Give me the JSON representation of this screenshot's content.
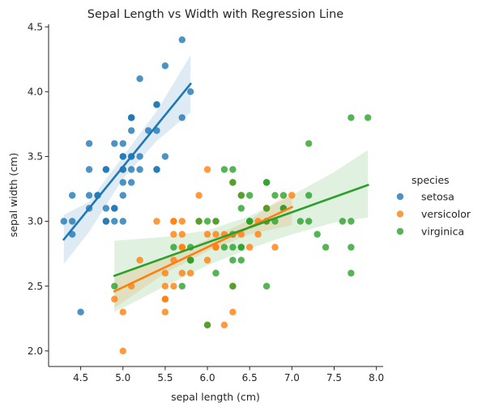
{
  "chart_data": {
    "type": "scatter",
    "title": "Sepal Length vs Width with Regression Line",
    "xlabel": "sepal length (cm)",
    "ylabel": "sepal width (cm)",
    "xlim": [
      4.12,
      8.08
    ],
    "ylim": [
      1.88,
      4.52
    ],
    "xticks": [
      4.5,
      5.0,
      5.5,
      6.0,
      6.5,
      7.0,
      7.5,
      8.0
    ],
    "xtick_labels": [
      "4.5",
      "5.0",
      "5.5",
      "6.0",
      "6.5",
      "7.0",
      "7.5",
      "8.0"
    ],
    "yticks": [
      2.0,
      2.5,
      3.0,
      3.5,
      4.0,
      4.5
    ],
    "ytick_labels": [
      "2.0",
      "2.5",
      "3.0",
      "3.5",
      "4.0",
      "4.5"
    ],
    "grid": false,
    "legend": {
      "title": "species",
      "placement": "right"
    },
    "series": [
      {
        "name": "setosa",
        "color": "#1f77b4",
        "regression": {
          "x": [
            4.3,
            5.8
          ],
          "y": [
            2.86,
            4.06
          ]
        },
        "ci_band": {
          "x": [
            4.3,
            4.6,
            5.0,
            5.4,
            5.8
          ],
          "upper": [
            3.05,
            3.15,
            3.5,
            3.85,
            4.28
          ],
          "lower": [
            2.67,
            2.92,
            3.33,
            3.62,
            3.84
          ]
        },
        "points": [
          [
            5.1,
            3.5
          ],
          [
            4.9,
            3.0
          ],
          [
            4.7,
            3.2
          ],
          [
            4.6,
            3.1
          ],
          [
            5.0,
            3.6
          ],
          [
            5.4,
            3.9
          ],
          [
            4.6,
            3.4
          ],
          [
            5.0,
            3.4
          ],
          [
            4.4,
            2.9
          ],
          [
            4.9,
            3.1
          ],
          [
            5.4,
            3.7
          ],
          [
            4.8,
            3.4
          ],
          [
            4.8,
            3.0
          ],
          [
            4.3,
            3.0
          ],
          [
            5.8,
            4.0
          ],
          [
            5.7,
            4.4
          ],
          [
            5.4,
            3.9
          ],
          [
            5.1,
            3.5
          ],
          [
            5.7,
            3.8
          ],
          [
            5.1,
            3.8
          ],
          [
            5.4,
            3.4
          ],
          [
            5.1,
            3.7
          ],
          [
            4.6,
            3.6
          ],
          [
            5.1,
            3.3
          ],
          [
            4.8,
            3.4
          ],
          [
            5.0,
            3.0
          ],
          [
            5.0,
            3.4
          ],
          [
            5.2,
            3.5
          ],
          [
            5.2,
            3.4
          ],
          [
            4.7,
            3.2
          ],
          [
            4.8,
            3.1
          ],
          [
            5.4,
            3.4
          ],
          [
            5.2,
            4.1
          ],
          [
            5.5,
            4.2
          ],
          [
            4.9,
            3.1
          ],
          [
            5.0,
            3.2
          ],
          [
            5.5,
            3.5
          ],
          [
            4.9,
            3.6
          ],
          [
            4.4,
            3.0
          ],
          [
            5.1,
            3.4
          ],
          [
            5.0,
            3.5
          ],
          [
            4.5,
            2.3
          ],
          [
            4.4,
            3.2
          ],
          [
            5.0,
            3.5
          ],
          [
            5.1,
            3.8
          ],
          [
            4.8,
            3.0
          ],
          [
            5.1,
            3.8
          ],
          [
            4.6,
            3.2
          ],
          [
            5.3,
            3.7
          ],
          [
            5.0,
            3.3
          ]
        ]
      },
      {
        "name": "versicolor",
        "color": "#ff7f0e",
        "regression": {
          "x": [
            4.9,
            7.0
          ],
          "y": [
            2.46,
            3.11
          ]
        },
        "ci_band": {
          "x": [
            4.9,
            5.5,
            6.0,
            6.5,
            7.0
          ],
          "upper": [
            2.58,
            2.72,
            2.86,
            3.01,
            3.24
          ],
          "lower": [
            2.33,
            2.6,
            2.77,
            2.9,
            2.97
          ]
        },
        "points": [
          [
            7.0,
            3.2
          ],
          [
            6.4,
            3.2
          ],
          [
            6.9,
            3.1
          ],
          [
            5.5,
            2.3
          ],
          [
            6.5,
            2.8
          ],
          [
            5.7,
            2.8
          ],
          [
            6.3,
            3.3
          ],
          [
            4.9,
            2.4
          ],
          [
            6.6,
            2.9
          ],
          [
            5.2,
            2.7
          ],
          [
            5.0,
            2.0
          ],
          [
            5.9,
            3.0
          ],
          [
            6.0,
            2.2
          ],
          [
            6.1,
            2.9
          ],
          [
            5.6,
            2.9
          ],
          [
            6.7,
            3.1
          ],
          [
            5.6,
            3.0
          ],
          [
            5.8,
            2.7
          ],
          [
            6.2,
            2.2
          ],
          [
            5.6,
            2.5
          ],
          [
            5.9,
            3.2
          ],
          [
            6.1,
            2.8
          ],
          [
            6.3,
            2.5
          ],
          [
            6.1,
            2.8
          ],
          [
            6.4,
            2.9
          ],
          [
            6.6,
            3.0
          ],
          [
            6.8,
            2.8
          ],
          [
            6.7,
            3.0
          ],
          [
            6.0,
            2.9
          ],
          [
            5.7,
            2.6
          ],
          [
            5.5,
            2.4
          ],
          [
            5.5,
            2.4
          ],
          [
            5.8,
            2.7
          ],
          [
            6.0,
            2.7
          ],
          [
            5.4,
            3.0
          ],
          [
            6.0,
            3.4
          ],
          [
            6.7,
            3.1
          ],
          [
            6.3,
            2.3
          ],
          [
            5.6,
            3.0
          ],
          [
            5.5,
            2.5
          ],
          [
            5.5,
            2.6
          ],
          [
            6.1,
            3.0
          ],
          [
            5.8,
            2.6
          ],
          [
            5.0,
            2.3
          ],
          [
            5.6,
            2.7
          ],
          [
            5.7,
            3.0
          ],
          [
            5.7,
            2.9
          ],
          [
            6.2,
            2.9
          ],
          [
            5.1,
            2.5
          ],
          [
            5.7,
            2.8
          ]
        ]
      },
      {
        "name": "virginica",
        "color": "#2ca02c",
        "regression": {
          "x": [
            4.9,
            7.9
          ],
          "y": [
            2.58,
            3.28
          ]
        },
        "ci_band": {
          "x": [
            4.9,
            5.5,
            6.0,
            6.5,
            7.0,
            7.5,
            7.9
          ],
          "upper": [
            2.85,
            2.88,
            2.93,
            3.04,
            3.2,
            3.38,
            3.55
          ],
          "lower": [
            2.3,
            2.5,
            2.66,
            2.79,
            2.9,
            2.99,
            3.03
          ]
        },
        "points": [
          [
            6.3,
            3.3
          ],
          [
            5.8,
            2.7
          ],
          [
            7.1,
            3.0
          ],
          [
            6.3,
            2.9
          ],
          [
            6.5,
            3.0
          ],
          [
            7.6,
            3.0
          ],
          [
            4.9,
            2.5
          ],
          [
            7.3,
            2.9
          ],
          [
            6.7,
            2.5
          ],
          [
            7.2,
            3.6
          ],
          [
            6.5,
            3.2
          ],
          [
            6.4,
            2.7
          ],
          [
            6.8,
            3.0
          ],
          [
            5.7,
            2.5
          ],
          [
            5.8,
            2.8
          ],
          [
            6.4,
            3.2
          ],
          [
            6.5,
            3.0
          ],
          [
            7.7,
            3.8
          ],
          [
            7.7,
            2.6
          ],
          [
            6.0,
            2.2
          ],
          [
            6.9,
            3.2
          ],
          [
            5.6,
            2.8
          ],
          [
            7.7,
            2.8
          ],
          [
            6.3,
            2.7
          ],
          [
            6.7,
            3.3
          ],
          [
            7.2,
            3.2
          ],
          [
            6.2,
            2.8
          ],
          [
            6.1,
            3.0
          ],
          [
            6.4,
            2.8
          ],
          [
            7.2,
            3.0
          ],
          [
            7.4,
            2.8
          ],
          [
            7.9,
            3.8
          ],
          [
            6.4,
            2.8
          ],
          [
            6.3,
            2.8
          ],
          [
            6.1,
            2.6
          ],
          [
            7.7,
            3.0
          ],
          [
            6.3,
            3.4
          ],
          [
            6.4,
            3.1
          ],
          [
            6.0,
            3.0
          ],
          [
            6.9,
            3.1
          ],
          [
            6.7,
            3.1
          ],
          [
            6.9,
            3.1
          ],
          [
            5.8,
            2.7
          ],
          [
            6.8,
            3.2
          ],
          [
            6.7,
            3.3
          ],
          [
            6.7,
            3.0
          ],
          [
            6.3,
            2.5
          ],
          [
            6.5,
            3.0
          ],
          [
            6.2,
            3.4
          ],
          [
            5.9,
            3.0
          ]
        ]
      }
    ]
  }
}
